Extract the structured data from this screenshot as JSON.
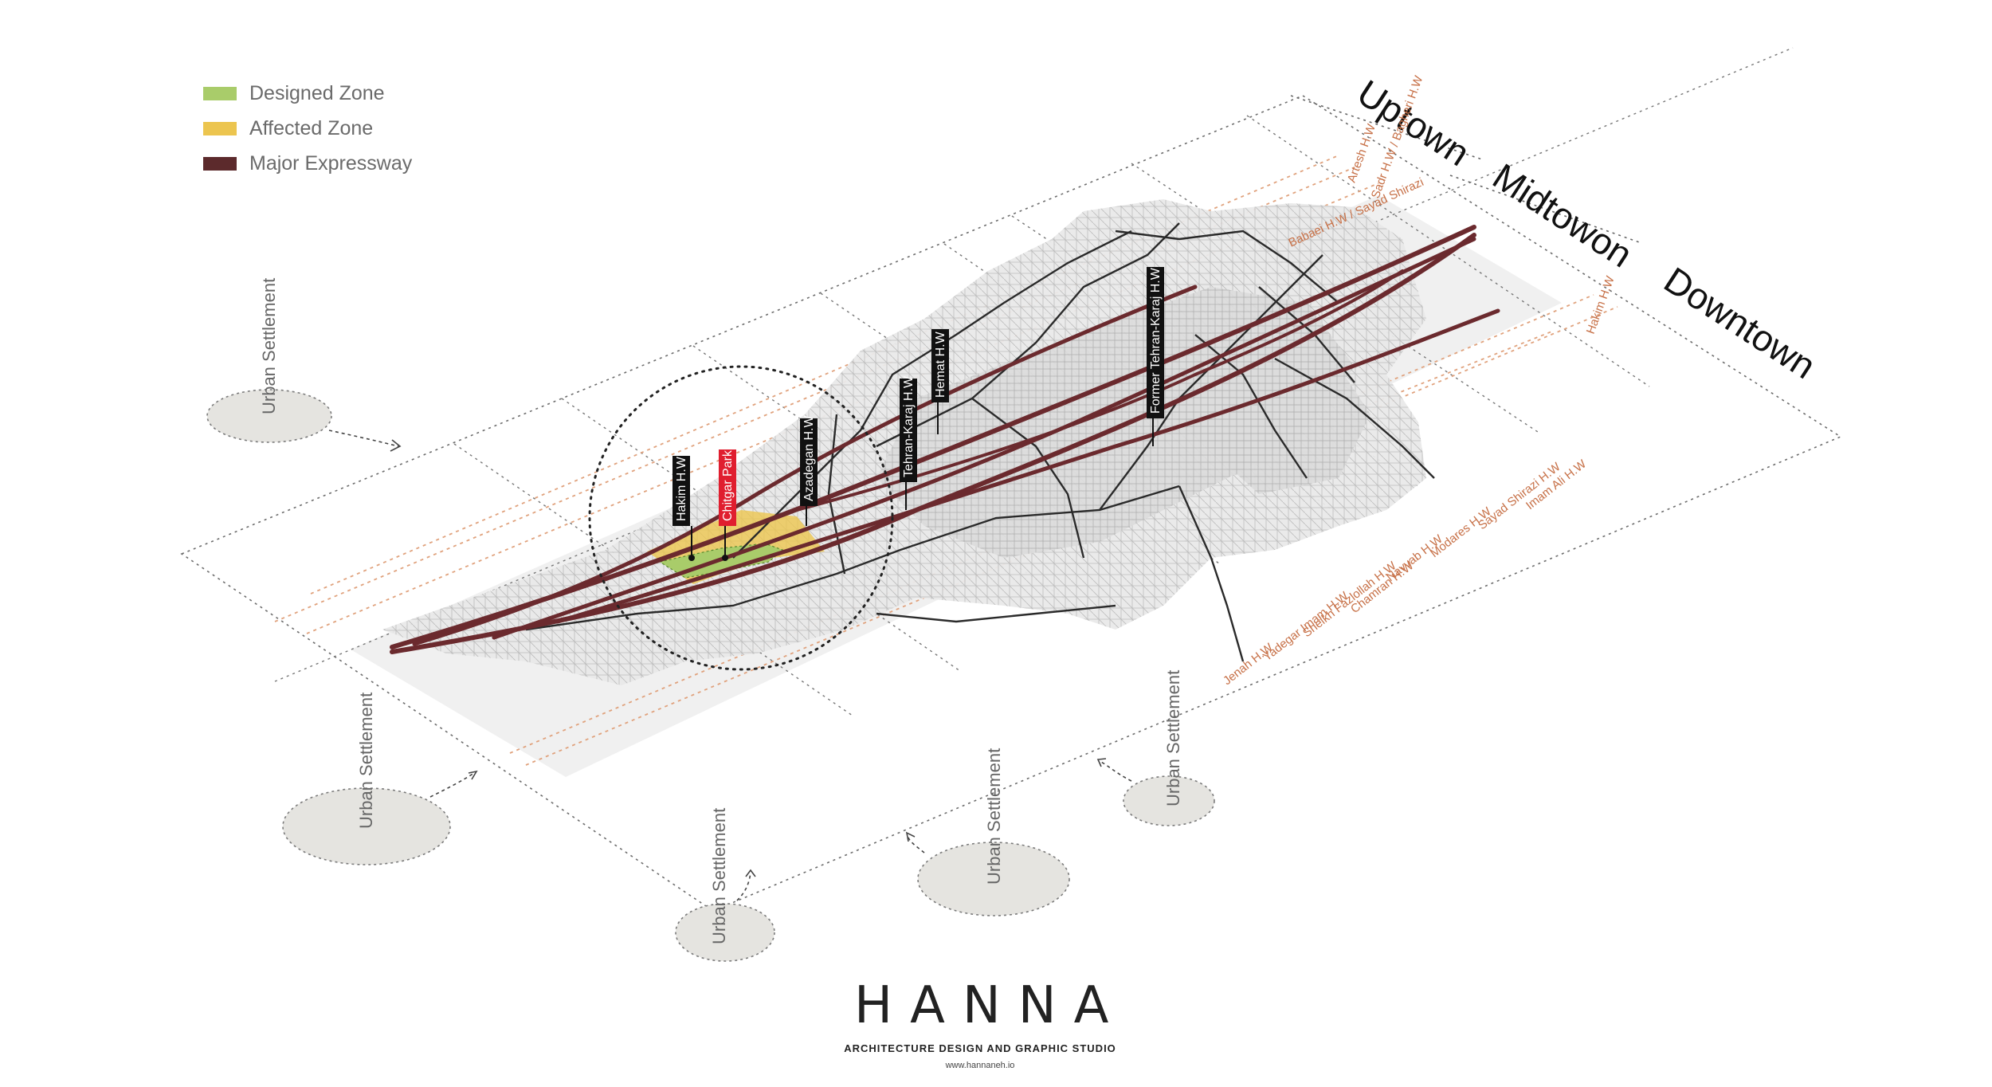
{
  "legend": {
    "items": [
      {
        "label": "Designed Zone",
        "color": "#a9cc6a"
      },
      {
        "label": "Affected Zone",
        "color": "#ecc54f"
      },
      {
        "label": "Major Expressway",
        "color": "#5c2a2c"
      }
    ]
  },
  "zones": {
    "uptown": "Uptown",
    "midtown": "Midtowon",
    "downtown": "Downtown"
  },
  "highways": {
    "hakim": "Hakim H.W",
    "chitgar": "Chitgar Park",
    "azadegan": "Azadegan H.W",
    "tehran_karaj": "Tehran-Karaj H.W",
    "hemat": "Hemat H.W",
    "former_tehran_karaj": "Former Tehran-Karaj H.W"
  },
  "side_labels": {
    "top_1": "Artesh H.W",
    "top_2": "Sadr H.W / Bagheri H.W",
    "top_3": "Babaei H.W / Sayad Shirazi",
    "top_4": "Hakim H.W",
    "right_1": "Imam Ali H.W",
    "right_2": "Sayad Shirazi H.W",
    "right_3": "Modares H.W",
    "right_4": "Navvab H.W",
    "right_5": "Chamran H.W",
    "right_6": "Sheikh Fazlollah H.W",
    "right_7": "Yadegar Imam H.W",
    "right_8": "Jenah H.W"
  },
  "settlements": {
    "s1": "Urban Settlement",
    "s2": "Urban Settlement",
    "s3": "Urban Settlement",
    "s4": "Urban Settlement",
    "s5": "Urban Settlement"
  },
  "logo": {
    "mark": "HANNA",
    "subtitle": "ARCHITECTURE DESIGN AND GRAPHIC STUDIO",
    "url": "www.hannaneh.io"
  },
  "colors": {
    "expressway": "#6b2a2e",
    "designed_zone": "#a9cc6a",
    "affected_zone": "#ecc54f",
    "guide_orange": "#e0a27d",
    "label_box": "#111111",
    "park_box": "#e01e2f",
    "settlement_fill": "#e5e4e0"
  }
}
